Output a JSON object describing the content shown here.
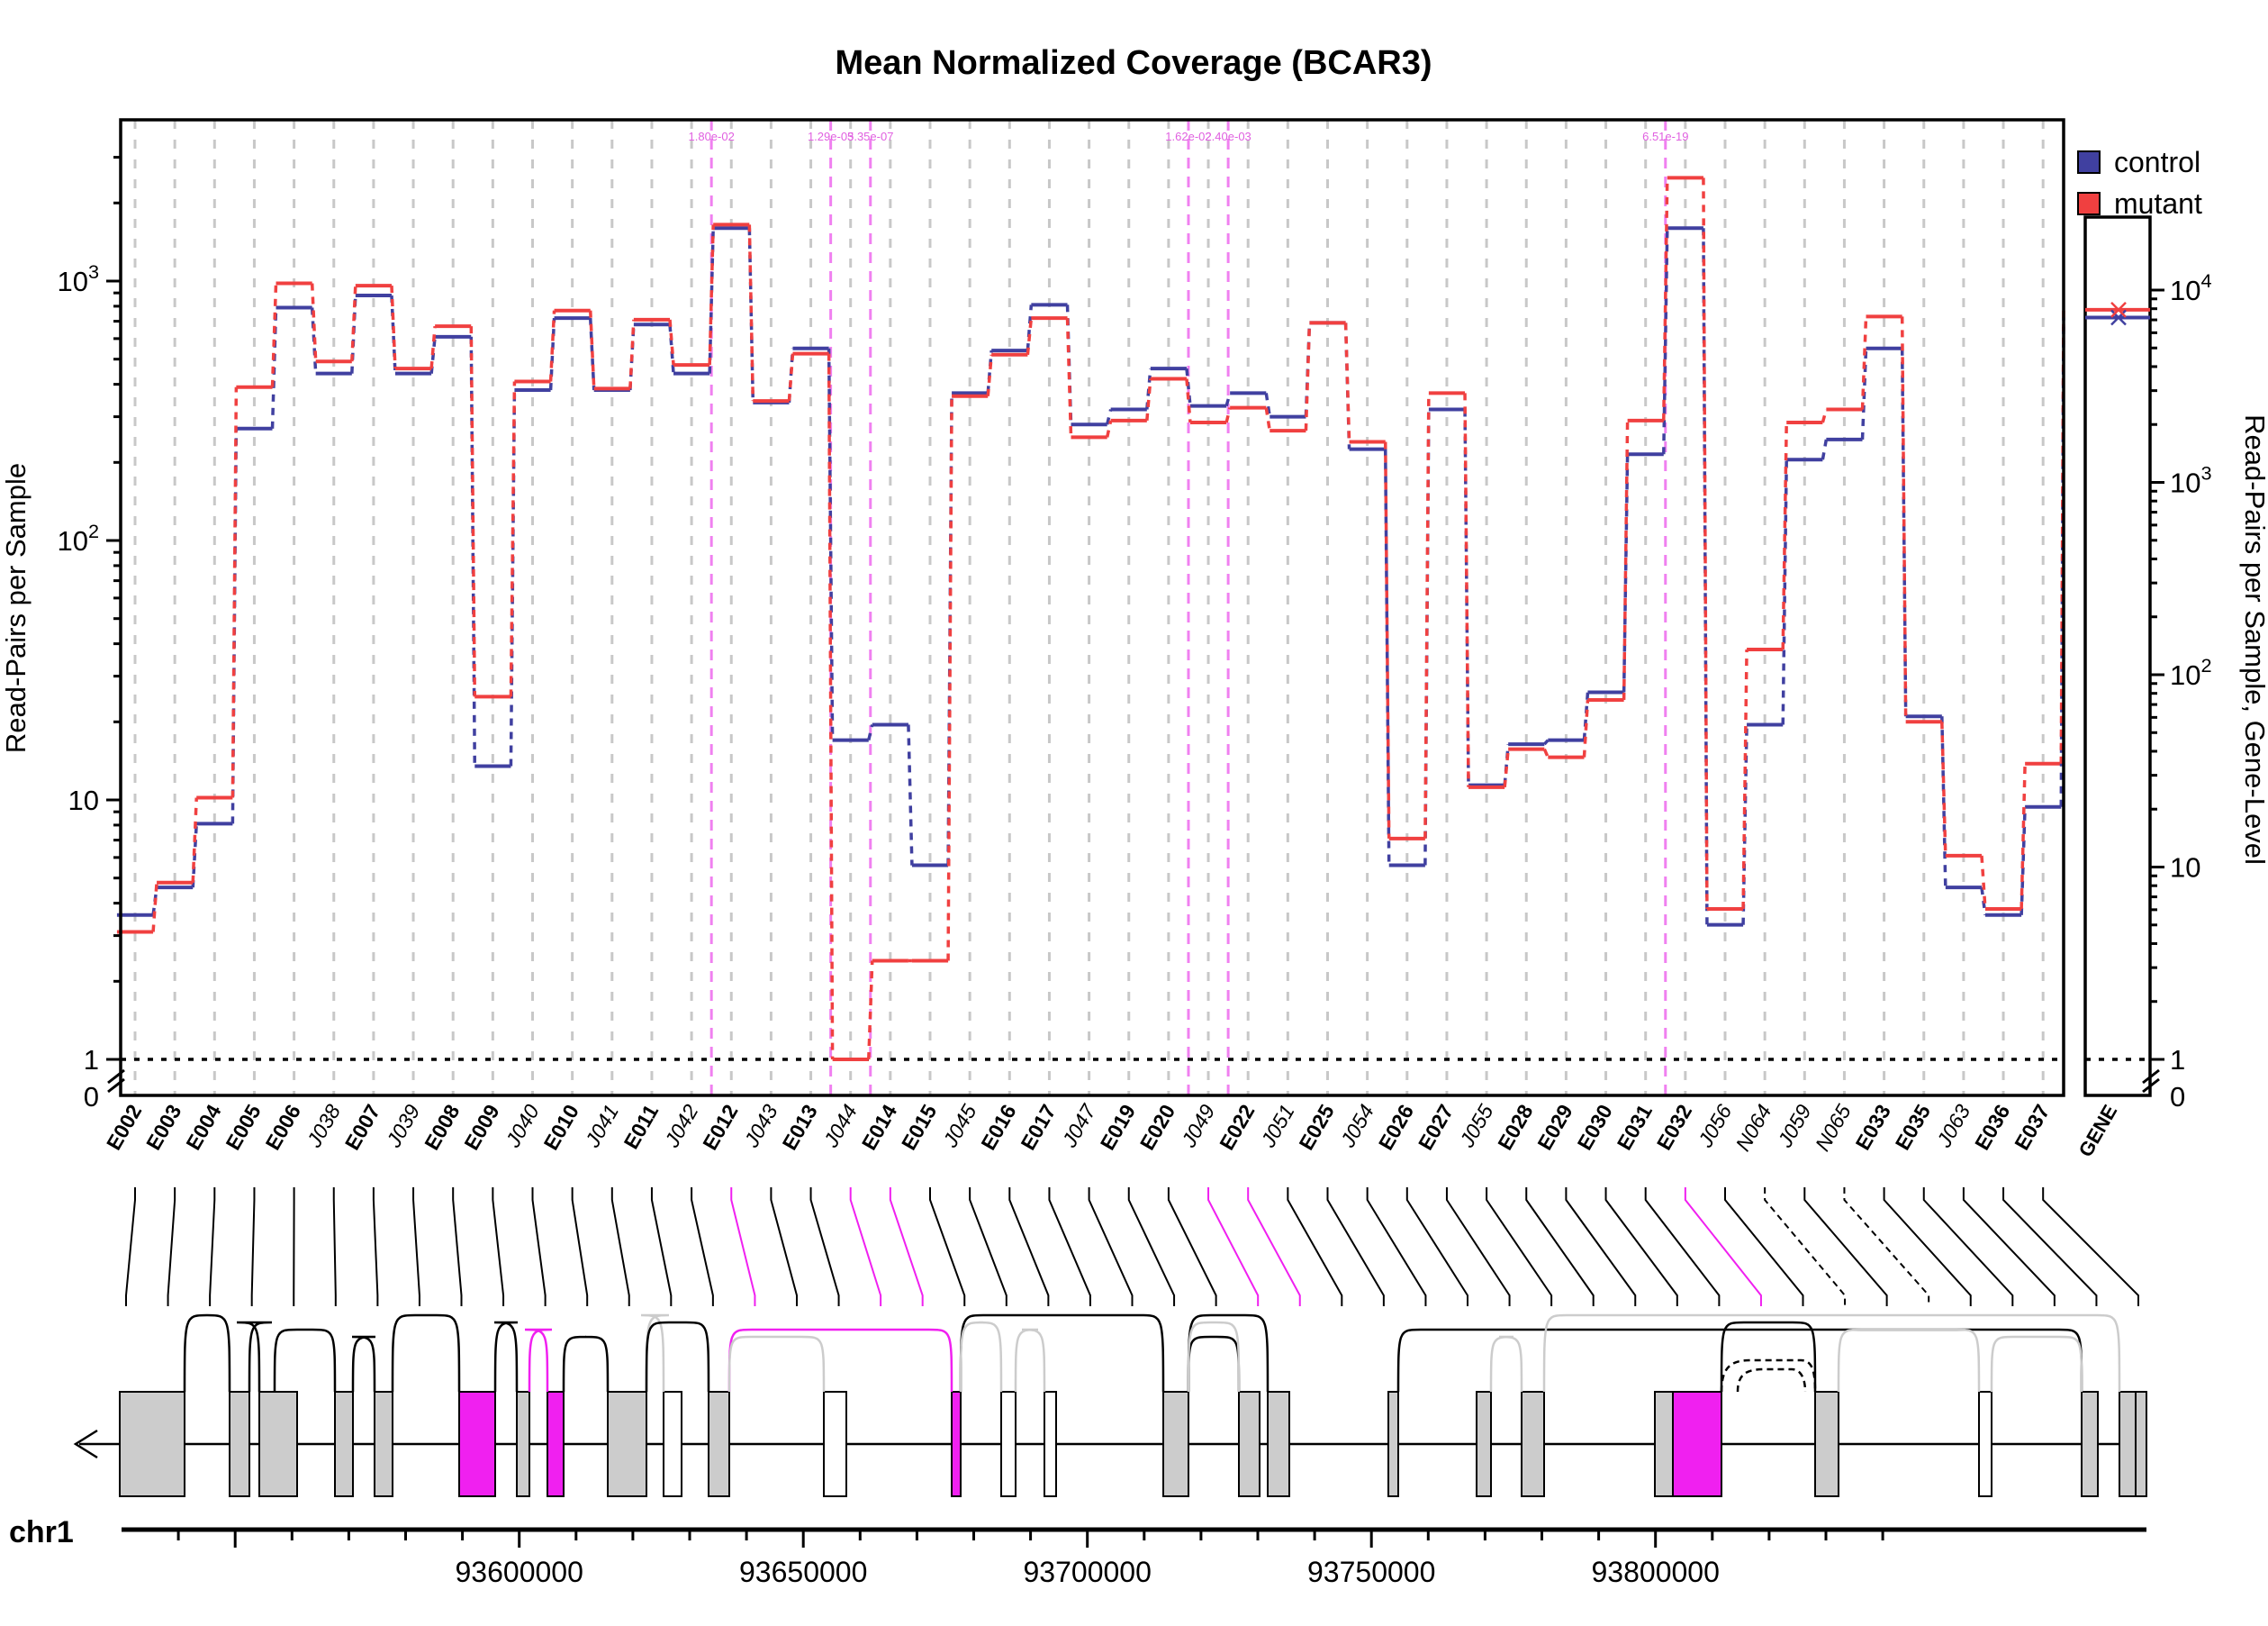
{
  "chart_data": {
    "type": "line",
    "title": "Mean Normalized Coverage (BCAR3)",
    "ylabel": "Read-Pairs per Sample",
    "ylabel_right": "Read-Pairs per Sample, Gene-Level",
    "y_scale": "log",
    "y_ticks": [
      {
        "value": 1,
        "label": "1"
      },
      {
        "value": 10,
        "label": "10"
      },
      {
        "value": 100,
        "label": "10",
        "sup": "2"
      },
      {
        "value": 1000,
        "label": "10",
        "sup": "3"
      }
    ],
    "y_zero_label": "0",
    "y_ticks_right": [
      {
        "value": 1,
        "label": "1"
      },
      {
        "value": 10,
        "label": "10"
      },
      {
        "value": 100,
        "label": "10",
        "sup": "2"
      },
      {
        "value": 1000,
        "label": "10",
        "sup": "3"
      },
      {
        "value": 10000,
        "label": "10",
        "sup": "4"
      }
    ],
    "y_zero_label_right": "0",
    "legend_position": "top-right",
    "series": [
      {
        "name": "control",
        "color": "#4040a0",
        "values": [
          3.6,
          4.6,
          8.1,
          270,
          790,
          440,
          880,
          440,
          610,
          13.5,
          380,
          720,
          380,
          680,
          440,
          1600,
          340,
          550,
          17,
          19.5,
          5.6,
          370,
          540,
          810,
          280,
          320,
          460,
          330,
          370,
          300,
          690,
          225,
          5.6,
          320,
          11.4,
          16.4,
          17,
          26,
          215,
          1600,
          3.3,
          19.5,
          205,
          245,
          550,
          21,
          4.6,
          3.6,
          9.4
        ]
      },
      {
        "name": "mutant",
        "color": "#f04040",
        "values": [
          3.1,
          4.8,
          10.2,
          390,
          980,
          490,
          960,
          460,
          670,
          25,
          410,
          770,
          385,
          710,
          475,
          1650,
          345,
          525,
          1.0,
          2.4,
          2.4,
          360,
          520,
          720,
          250,
          290,
          420,
          285,
          325,
          265,
          690,
          240,
          7.1,
          370,
          11.2,
          15.7,
          14.6,
          24.3,
          290,
          2500,
          3.8,
          38,
          285,
          320,
          730,
          20,
          6.1,
          3.8,
          13.8
        ]
      }
    ],
    "categories": [
      {
        "label": "E002",
        "bold": true
      },
      {
        "label": "E003",
        "bold": true
      },
      {
        "label": "E004",
        "bold": true
      },
      {
        "label": "E005",
        "bold": true
      },
      {
        "label": "E006",
        "bold": true
      },
      {
        "label": "J038",
        "bold": false
      },
      {
        "label": "E007",
        "bold": true
      },
      {
        "label": "J039",
        "bold": false
      },
      {
        "label": "E008",
        "bold": true
      },
      {
        "label": "E009",
        "bold": true
      },
      {
        "label": "J040",
        "bold": false
      },
      {
        "label": "E010",
        "bold": true
      },
      {
        "label": "J041",
        "bold": false
      },
      {
        "label": "E011",
        "bold": true
      },
      {
        "label": "J042",
        "bold": false
      },
      {
        "label": "E012",
        "bold": true
      },
      {
        "label": "J043",
        "bold": false
      },
      {
        "label": "E013",
        "bold": true
      },
      {
        "label": "J044",
        "bold": false
      },
      {
        "label": "E014",
        "bold": true
      },
      {
        "label": "E015",
        "bold": true
      },
      {
        "label": "J045",
        "bold": false
      },
      {
        "label": "E016",
        "bold": true
      },
      {
        "label": "E017",
        "bold": true
      },
      {
        "label": "J047",
        "bold": false
      },
      {
        "label": "E019",
        "bold": true
      },
      {
        "label": "E020",
        "bold": true
      },
      {
        "label": "J049",
        "bold": false
      },
      {
        "label": "E022",
        "bold": true
      },
      {
        "label": "J051",
        "bold": false
      },
      {
        "label": "E025",
        "bold": true
      },
      {
        "label": "J054",
        "bold": false
      },
      {
        "label": "E026",
        "bold": true
      },
      {
        "label": "E027",
        "bold": true
      },
      {
        "label": "J055",
        "bold": false
      },
      {
        "label": "E028",
        "bold": true
      },
      {
        "label": "E029",
        "bold": true
      },
      {
        "label": "E030",
        "bold": true
      },
      {
        "label": "E031",
        "bold": true
      },
      {
        "label": "E032",
        "bold": true
      },
      {
        "label": "J056",
        "bold": false
      },
      {
        "label": "N064",
        "bold": false
      },
      {
        "label": "J059",
        "bold": false
      },
      {
        "label": "N065",
        "bold": false
      },
      {
        "label": "E033",
        "bold": true
      },
      {
        "label": "E035",
        "bold": true
      },
      {
        "label": "J063",
        "bold": false
      },
      {
        "label": "E036",
        "bold": true
      },
      {
        "label": "E037",
        "bold": true
      }
    ],
    "highlight_lines": [
      {
        "after_index": 14,
        "label": "1.80e-02"
      },
      {
        "after_index": 17,
        "label": "1.29e-03"
      },
      {
        "after_index": 18,
        "label": "5.35e-07"
      },
      {
        "after_index": 26,
        "label": "1.62e-02"
      },
      {
        "after_index": 27,
        "label": "2.40e-03"
      },
      {
        "after_index": 38,
        "label": "6.51e-19"
      }
    ],
    "gene_panel": {
      "label": "GENE",
      "control": 7200,
      "mutant": 7900
    },
    "genomic_axis": {
      "chromosome": "chr1",
      "ticks": [
        {
          "value": 93600000,
          "label": "93600000"
        },
        {
          "value": 93650000,
          "label": "93650000"
        },
        {
          "value": 93700000,
          "label": "93700000"
        },
        {
          "value": 93750000,
          "label": "93750000"
        },
        {
          "value": 93800000,
          "label": "93800000"
        }
      ]
    }
  }
}
